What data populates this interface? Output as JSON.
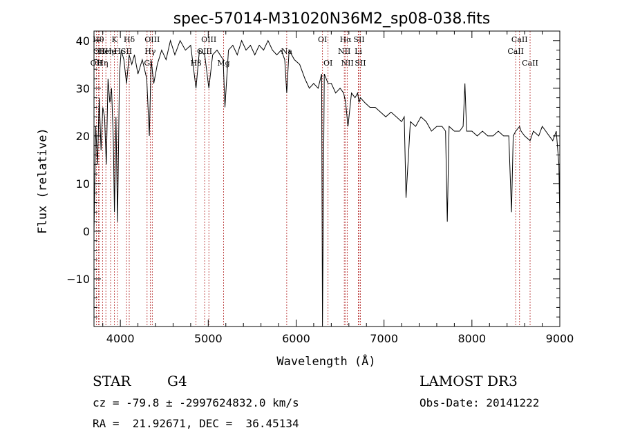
{
  "chart_data": {
    "type": "line",
    "title": "spec-57014-M31020N36M2_sp08-038.fits",
    "xlabel": "Wavelength (Å)",
    "ylabel": "Flux (relative)",
    "xlim": [
      3700,
      9000
    ],
    "ylim": [
      -20,
      42
    ],
    "x_ticks": [
      4000,
      5000,
      6000,
      7000,
      8000,
      9000
    ],
    "y_ticks": [
      -10,
      0,
      10,
      20,
      30,
      40
    ],
    "series": [
      {
        "x": [
          3700,
          3720,
          3740,
          3760,
          3780,
          3800,
          3820,
          3840,
          3860,
          3880,
          3900,
          3920,
          3933,
          3950,
          3968,
          3990,
          4010,
          4040,
          4070,
          4100,
          4130,
          4160,
          4200,
          4250,
          4300,
          4330,
          4350,
          4380,
          4420,
          4470,
          4520,
          4570,
          4620,
          4680,
          4740,
          4800,
          4861,
          4900,
          4960,
          5007,
          5050,
          5100,
          5170,
          5190,
          5230,
          5280,
          5330,
          5380,
          5430,
          5480,
          5530,
          5580,
          5630,
          5680,
          5730,
          5780,
          5830,
          5870,
          5893,
          5920,
          5980,
          6040,
          6100,
          6150,
          6200,
          6250,
          6290,
          6300,
          6320,
          6363,
          6400,
          6450,
          6500,
          6540,
          6563,
          6590,
          6630,
          6670,
          6700,
          6716,
          6731,
          6780,
          6840,
          6900,
          6960,
          7020,
          7080,
          7140,
          7200,
          7230,
          7250,
          7300,
          7360,
          7420,
          7480,
          7540,
          7600,
          7660,
          7700,
          7720,
          7740,
          7800,
          7860,
          7900,
          7920,
          7940,
          8000,
          8060,
          8120,
          8180,
          8240,
          8300,
          8360,
          8420,
          8450,
          8470,
          8498,
          8542,
          8560,
          8600,
          8662,
          8700,
          8760,
          8800,
          8840,
          8880,
          8920,
          8960,
          8990,
          9000
        ],
        "y": [
          0,
          22,
          14,
          28,
          17,
          26,
          24,
          14,
          32,
          27,
          30,
          19,
          4,
          24,
          2,
          33,
          38,
          36,
          31,
          37,
          35,
          37,
          33,
          36,
          32,
          20,
          36,
          31,
          35,
          38,
          36,
          40,
          37,
          40,
          38,
          39,
          30,
          38,
          37,
          30,
          37,
          38,
          36,
          26,
          38,
          39,
          37,
          40,
          38,
          39,
          37,
          39,
          38,
          40,
          38,
          37,
          38,
          36,
          29,
          38,
          36,
          35,
          32,
          30,
          31,
          30,
          33,
          -20,
          33,
          31,
          31,
          29,
          30,
          29,
          27,
          22,
          29,
          28,
          29,
          27,
          28,
          27,
          26,
          26,
          25,
          24,
          25,
          24,
          23,
          24,
          7,
          23,
          22,
          24,
          23,
          21,
          22,
          22,
          21,
          2,
          22,
          21,
          21,
          22,
          31,
          21,
          21,
          20,
          21,
          20,
          20,
          21,
          20,
          20,
          4,
          20,
          21,
          22,
          21,
          20,
          19,
          21,
          20,
          22,
          21,
          20,
          19,
          21,
          14,
          2
        ]
      }
    ],
    "lines": [
      {
        "wl": 3727,
        "label": "OII",
        "row": 3
      },
      {
        "wl": 3750,
        "label": "Hθ",
        "row": 1
      },
      {
        "wl": 3760,
        "label": "OII",
        "row": 2
      },
      {
        "wl": 3797,
        "label": "Hη",
        "row": 3
      },
      {
        "wl": 3835,
        "label": "Heη",
        "row": 2
      },
      {
        "wl": 3889,
        "label": "He",
        "row": 2
      },
      {
        "wl": 3933,
        "label": "K",
        "row": 1
      },
      {
        "wl": 3968,
        "label": "H",
        "row": 2
      },
      {
        "wl": 4101,
        "label": "Hδ",
        "row": 1
      },
      {
        "wl": 4070,
        "label": "SII",
        "row": 2
      },
      {
        "wl": 4304,
        "label": "G",
        "row": 3
      },
      {
        "wl": 4340,
        "label": "Hγ",
        "row": 2
      },
      {
        "wl": 4363,
        "label": "OIII",
        "row": 1
      },
      {
        "wl": 4861,
        "label": "Hβ",
        "row": 3
      },
      {
        "wl": 4959,
        "label": "OIII",
        "row": 2
      },
      {
        "wl": 5007,
        "label": "OIII",
        "row": 1
      },
      {
        "wl": 5175,
        "label": "Mg",
        "row": 3
      },
      {
        "wl": 5893,
        "label": "Na",
        "row": 2
      },
      {
        "wl": 6300,
        "label": "OI",
        "row": 1
      },
      {
        "wl": 6363,
        "label": "OI",
        "row": 3
      },
      {
        "wl": 6548,
        "label": "NII",
        "row": 2
      },
      {
        "wl": 6563,
        "label": "Hα",
        "row": 1
      },
      {
        "wl": 6583,
        "label": "NII",
        "row": 3
      },
      {
        "wl": 6716,
        "label": "SII",
        "row": 1
      },
      {
        "wl": 6731,
        "label": "SII",
        "row": 3
      },
      {
        "wl": 6708,
        "label": "Li",
        "row": 2
      },
      {
        "wl": 8498,
        "label": "CaII",
        "row": 2
      },
      {
        "wl": 8542,
        "label": "CaII",
        "row": 1
      },
      {
        "wl": 8662,
        "label": "CaII",
        "row": 3
      }
    ],
    "grid": false,
    "line_marker_color": "#b22222",
    "series_color": "#000000"
  },
  "info": {
    "class": "STAR",
    "subclass": "G4",
    "survey": "LAMOST DR3",
    "cz": "cz = -79.8 ± -2997624832.0 km/s",
    "obs_date": "Obs-Date: 20141222",
    "coords": "RA =  21.92671, DEC =  36.45134"
  }
}
